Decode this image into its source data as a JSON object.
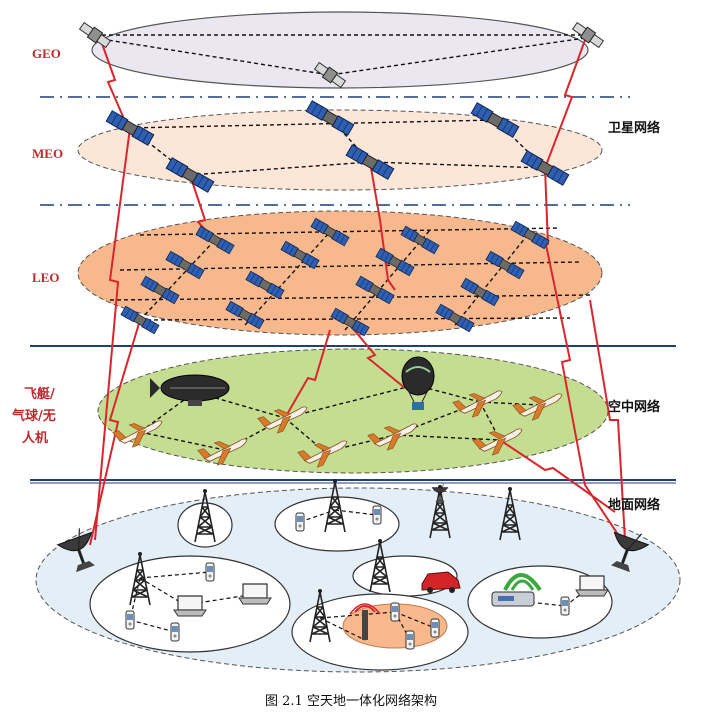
{
  "layers": {
    "geo": "GEO",
    "meo": "MEO",
    "leo": "LEO",
    "air_line1": "飞艇/",
    "air_line2": "气球/无",
    "air_line3": "人机"
  },
  "groups": {
    "satellite": "卫星网络",
    "air": "空中网络",
    "ground": "地面网络"
  },
  "caption": "图 2.1   空天地一体化网络架构",
  "colors": {
    "link_red": "#d9262c",
    "geo_fill": "#ebe7f1",
    "meo_fill": "#fbe6d8",
    "leo_fill": "#f6b88c",
    "air_fill": "#c5dd91",
    "ground_fill": "#e3eef6",
    "divider_blue": "#1f3f78"
  }
}
